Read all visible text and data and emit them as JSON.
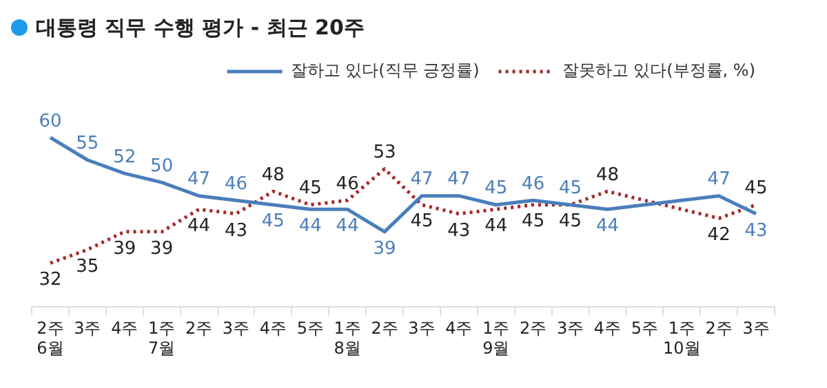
{
  "chart_data": {
    "type": "line",
    "title": "대통령 직무 수행 평가 - 최근 20주",
    "categories": [
      "2주\n6월",
      "3주",
      "4주",
      "1주\n7월",
      "2주",
      "3주",
      "4주",
      "5주",
      "1주\n8월",
      "2주",
      "3주",
      "4주",
      "1주\n9월",
      "2주",
      "3주",
      "4주",
      "5주",
      "1주\n10월",
      "2주",
      "3주"
    ],
    "series": [
      {
        "name": "잘하고 있다(직무 긍정률)",
        "color": "#4a7ebb",
        "line_style": "solid",
        "values": [
          60,
          55,
          52,
          50,
          47,
          46,
          45,
          44,
          44,
          39,
          47,
          47,
          45,
          46,
          45,
          44,
          null,
          null,
          47,
          43
        ]
      },
      {
        "name": "잘못하고 있다(부정률, %)",
        "color": "#a52a2a",
        "line_style": "dotted",
        "values": [
          32,
          35,
          39,
          39,
          44,
          43,
          48,
          45,
          46,
          53,
          45,
          43,
          44,
          45,
          45,
          48,
          null,
          null,
          42,
          45
        ]
      }
    ],
    "data_labels": true,
    "legend": "top right",
    "marker": "none",
    "grid": false,
    "tick_labels": "x"
  }
}
